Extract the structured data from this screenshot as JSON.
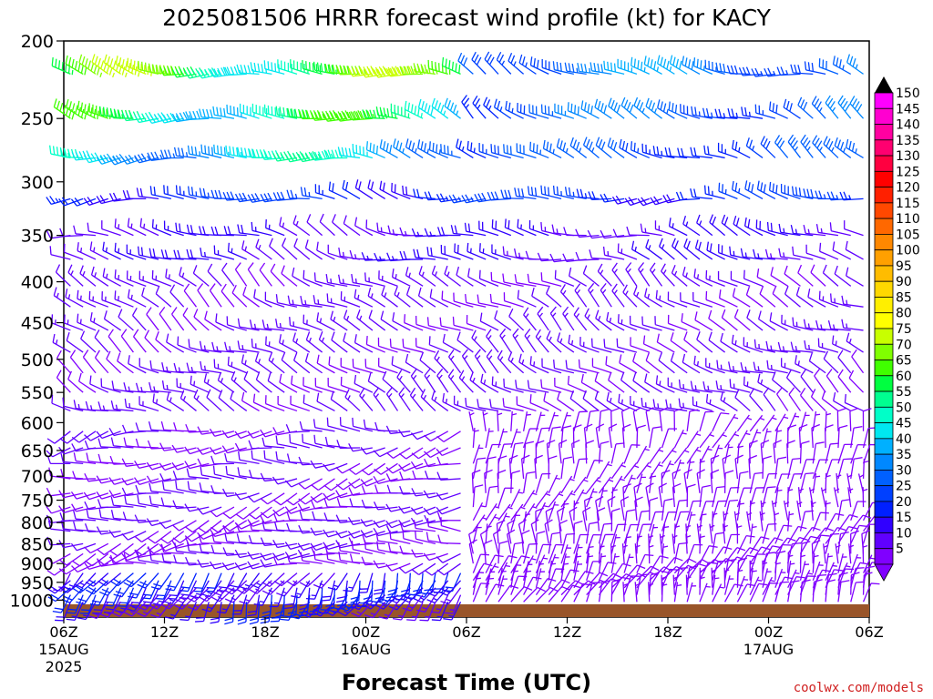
{
  "chart_data": {
    "type": "wind_barb_time_height",
    "title": "2025081506 HRRR forecast wind profile (kt) for KACY",
    "xlabel": "Forecast Time (UTC)",
    "ylabel": "",
    "credit": "coolwx.com/models",
    "y_axis_reversed": true,
    "y_ticks": [
      200,
      250,
      300,
      350,
      400,
      450,
      500,
      550,
      600,
      650,
      700,
      750,
      800,
      850,
      900,
      950,
      1000
    ],
    "x_range_hours": [
      0,
      48
    ],
    "x_ticks": [
      {
        "hour": 0,
        "label": "06Z",
        "sub1": "15AUG",
        "sub2": "2025"
      },
      {
        "hour": 6,
        "label": "12Z",
        "sub1": "",
        "sub2": ""
      },
      {
        "hour": 12,
        "label": "18Z",
        "sub1": "",
        "sub2": ""
      },
      {
        "hour": 18,
        "label": "00Z",
        "sub1": "16AUG",
        "sub2": ""
      },
      {
        "hour": 24,
        "label": "06Z",
        "sub1": "",
        "sub2": ""
      },
      {
        "hour": 30,
        "label": "12Z",
        "sub1": "",
        "sub2": ""
      },
      {
        "hour": 36,
        "label": "18Z",
        "sub1": "",
        "sub2": ""
      },
      {
        "hour": 42,
        "label": "00Z",
        "sub1": "17AUG",
        "sub2": ""
      },
      {
        "hour": 48,
        "label": "06Z",
        "sub1": "",
        "sub2": ""
      }
    ],
    "colorbar": {
      "values": [
        150,
        145,
        140,
        135,
        130,
        125,
        120,
        115,
        110,
        105,
        100,
        95,
        90,
        85,
        80,
        75,
        70,
        65,
        60,
        55,
        50,
        45,
        40,
        35,
        30,
        25,
        20,
        15,
        10,
        5
      ],
      "colors": [
        "#ff00ff",
        "#ff00d0",
        "#ff00a0",
        "#ff0070",
        "#ff0040",
        "#ff0000",
        "#ff2000",
        "#ff4800",
        "#ff6800",
        "#ff8800",
        "#ffa000",
        "#ffbc00",
        "#ffd800",
        "#ffef00",
        "#ffff00",
        "#c8ff00",
        "#80ff00",
        "#40ff00",
        "#00ff40",
        "#00ff90",
        "#00ffc8",
        "#00e8f0",
        "#00b0ff",
        "#0088ff",
        "#0060ff",
        "#0040ff",
        "#0020ff",
        "#3000ff",
        "#6000ff",
        "#8000ff"
      ]
    },
    "levels_shown": [
      220,
      250,
      280,
      315,
      350,
      375,
      405,
      430,
      460,
      490,
      520,
      550,
      580,
      615,
      645,
      675,
      705,
      735,
      765,
      795,
      820,
      850,
      875,
      900,
      925,
      945,
      965,
      985,
      1005
    ],
    "wind_regimes": [
      {
        "p_max": 240,
        "t_end": 24,
        "speed": 62,
        "dir": 280
      },
      {
        "p_max": 240,
        "t_end": 48,
        "speed": 35,
        "dir": 290
      },
      {
        "p_max": 270,
        "t_end": 24,
        "speed": 55,
        "dir": 280
      },
      {
        "p_max": 270,
        "t_end": 48,
        "speed": 32,
        "dir": 300
      },
      {
        "p_max": 300,
        "t_end": 24,
        "speed": 45,
        "dir": 275
      },
      {
        "p_max": 300,
        "t_end": 48,
        "speed": 28,
        "dir": 300
      },
      {
        "p_max": 340,
        "t_end": 48,
        "speed": 24,
        "dir": 275
      },
      {
        "p_max": 400,
        "t_end": 48,
        "speed": 15,
        "dir": 285
      },
      {
        "p_max": 600,
        "t_end": 48,
        "speed": 12,
        "dir": 300
      },
      {
        "p_max": 900,
        "t_end": 24,
        "speed": 10,
        "dir": 260
      },
      {
        "p_max": 900,
        "t_end": 48,
        "speed": 8,
        "dir": 10
      },
      {
        "p_max": 1005,
        "t_end": 24,
        "speed": 18,
        "dir": 210
      },
      {
        "p_max": 1005,
        "t_end": 48,
        "speed": 8,
        "dir": 20
      }
    ],
    "terrain_color": "#99552a",
    "colors": {
      "axis": "#000000",
      "background": "#ffffff"
    }
  }
}
